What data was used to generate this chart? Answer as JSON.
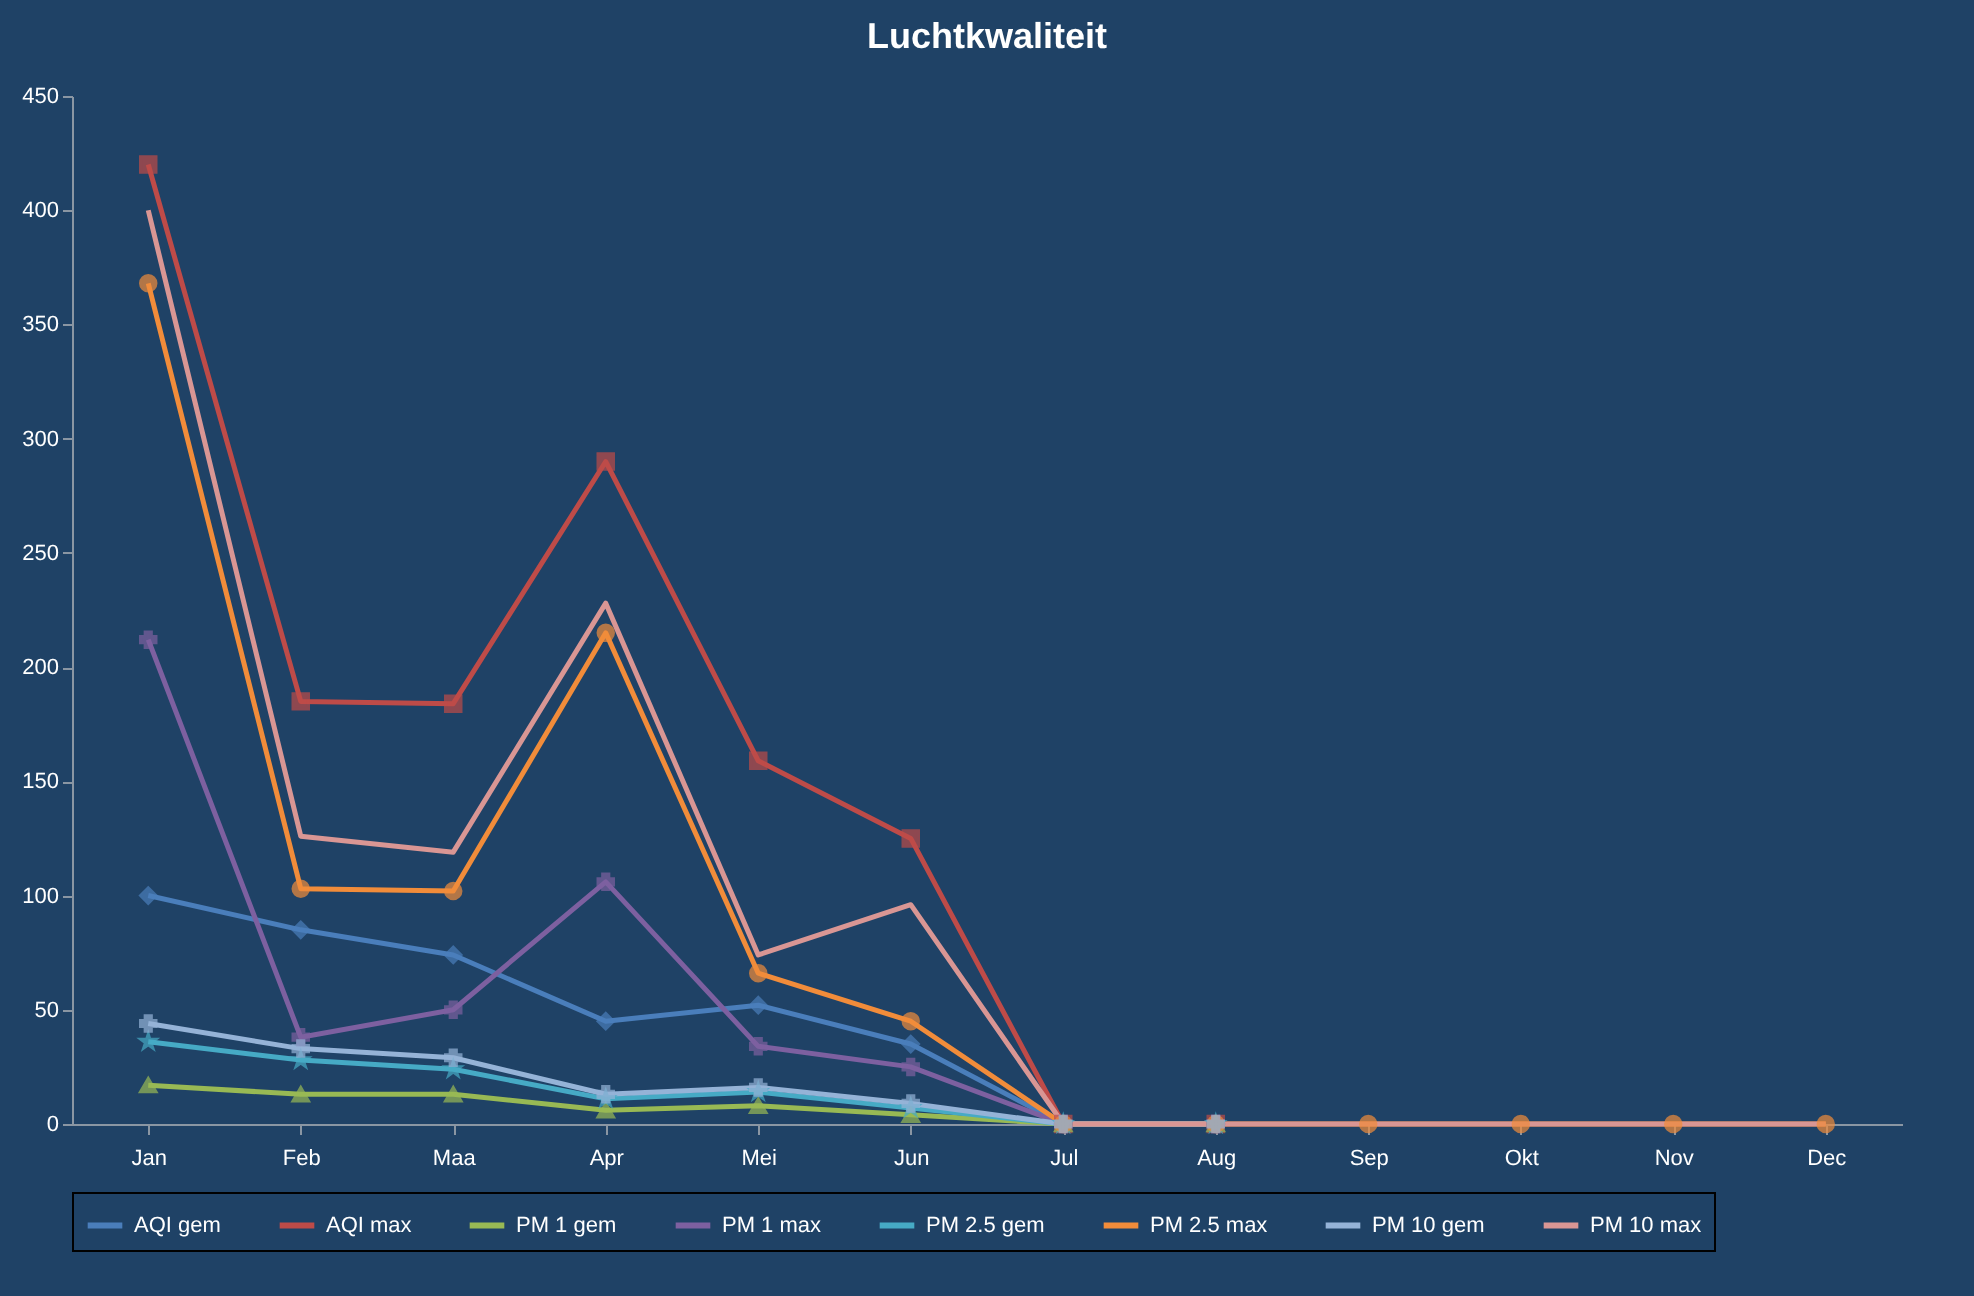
{
  "chart_data": {
    "type": "line",
    "title": "Luchtkwaliteit",
    "categories": [
      "Jan",
      "Feb",
      "Maa",
      "Apr",
      "Mei",
      "Jun",
      "Jul",
      "Aug",
      "Sep",
      "Okt",
      "Nov",
      "Dec"
    ],
    "ylim": [
      0,
      450
    ],
    "yticks": [
      0,
      50,
      100,
      150,
      200,
      250,
      300,
      350,
      400,
      450
    ],
    "grid": false,
    "legend": "bottom",
    "series": [
      {
        "name": "AQI gem",
        "color": "#4a7ebb",
        "marker": "diamond",
        "values": [
          100,
          85,
          74,
          45,
          52,
          35,
          0,
          0,
          null,
          null,
          null,
          null
        ]
      },
      {
        "name": "AQI max",
        "color": "#be4b48",
        "marker": "square",
        "values": [
          420,
          185,
          184,
          290,
          159,
          125,
          0,
          0,
          null,
          null,
          null,
          null
        ]
      },
      {
        "name": "PM 1 gem",
        "color": "#98b954",
        "marker": "triangle",
        "values": [
          17,
          13,
          13,
          6,
          8,
          4,
          0,
          0,
          null,
          null,
          null,
          null
        ]
      },
      {
        "name": "PM 1 max",
        "color": "#7d60a0",
        "marker": "cross",
        "values": [
          212,
          38,
          50,
          106,
          34,
          25,
          0,
          0,
          null,
          null,
          null,
          null
        ]
      },
      {
        "name": "PM 2.5 gem",
        "color": "#46aac5",
        "marker": "star",
        "values": [
          36,
          28,
          24,
          11,
          14,
          7,
          0,
          0,
          null,
          null,
          null,
          null
        ]
      },
      {
        "name": "PM 2.5 max",
        "color": "#f18c3a",
        "marker": "circle",
        "values": [
          368,
          103,
          102,
          215,
          66,
          45,
          0,
          0,
          0,
          0,
          0,
          0
        ]
      },
      {
        "name": "PM 10 gem",
        "color": "#95b3d7",
        "marker": "cross",
        "values": [
          44,
          33,
          29,
          13,
          16,
          9,
          0,
          0,
          null,
          null,
          null,
          null
        ]
      },
      {
        "name": "PM 10 max",
        "color": "#d99694",
        "marker": "none",
        "values": [
          400,
          126,
          119,
          228,
          74,
          96,
          0,
          0,
          0,
          0,
          0,
          0
        ]
      }
    ]
  }
}
